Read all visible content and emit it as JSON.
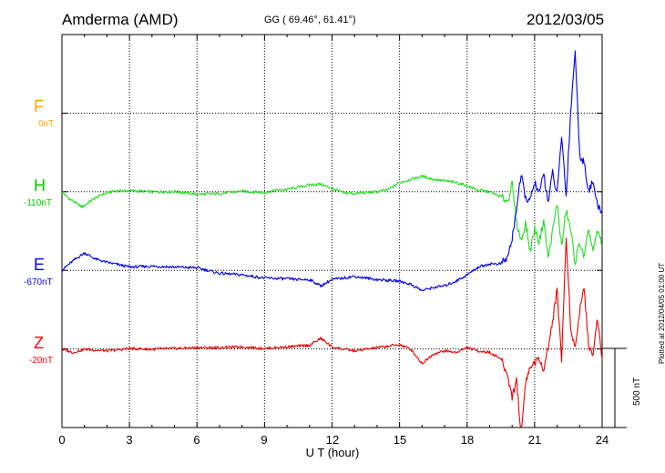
{
  "header": {
    "station": "Amderma (AMD)",
    "coords": "GG ( 69.46°,  61.41°)",
    "date": "2012/03/05",
    "plotted": "Plotted at 2012/04/05 01:00 UT"
  },
  "chart_data": {
    "type": "line",
    "xlabel": "U T (hour)",
    "xlim": [
      0,
      24
    ],
    "xticks": [
      "0",
      "3",
      "6",
      "9",
      "12",
      "15",
      "18",
      "21",
      "24"
    ],
    "ylabel": "",
    "grid": true,
    "scale_bar": "500 nT",
    "components": [
      {
        "letter": "F",
        "offset": "0nT",
        "color": "#ffa500"
      },
      {
        "letter": "H",
        "offset": "-110nT",
        "color": "#00cc00"
      },
      {
        "letter": "E",
        "offset": "-670nT",
        "color": "#0000ff"
      },
      {
        "letter": "Z",
        "offset": "-20nT",
        "color": "#ff0000"
      }
    ],
    "series": [
      {
        "name": "H",
        "color": "#22dd22",
        "unit": "nT relative to baseline",
        "x": [
          0,
          0.3,
          0.6,
          0.9,
          1.1,
          1.4,
          1.8,
          2.3,
          3,
          4,
          5,
          6,
          7,
          8,
          9,
          9.5,
          10,
          10.5,
          11,
          11.5,
          12,
          12.5,
          13,
          14,
          14.5,
          15,
          15.5,
          16,
          16.5,
          17,
          17.5,
          18,
          18.5,
          19,
          19.5,
          19.8,
          20.0,
          20.2,
          20.4,
          20.6,
          20.8,
          21.0,
          21.2,
          21.4,
          21.6,
          21.8,
          22.0,
          22.2,
          22.4,
          22.6,
          22.8,
          23.0,
          23.2,
          23.4,
          23.6,
          23.8,
          24
        ],
        "y": [
          0,
          -40,
          -70,
          -95,
          -75,
          -45,
          -15,
          5,
          8,
          0,
          2,
          -15,
          -10,
          5,
          -5,
          10,
          15,
          30,
          45,
          50,
          20,
          -5,
          -10,
          0,
          15,
          60,
          80,
          100,
          80,
          70,
          60,
          40,
          10,
          0,
          -30,
          -60,
          50,
          -200,
          -310,
          -200,
          -380,
          -230,
          -320,
          -180,
          -420,
          -250,
          -70,
          -350,
          -120,
          -240,
          -450,
          -320,
          -420,
          -240,
          -380,
          -250,
          -330
        ]
      },
      {
        "name": "E",
        "color": "#0000ee",
        "unit": "nT relative to baseline",
        "x": [
          0,
          0.5,
          1,
          1.5,
          2,
          3,
          4,
          5,
          6,
          7,
          8,
          9,
          10,
          10.5,
          11,
          11.5,
          12,
          13,
          14,
          15,
          15.5,
          16,
          16.5,
          17,
          17.5,
          18,
          18.5,
          19,
          19.5,
          19.8,
          20.0,
          20.2,
          20.4,
          20.6,
          20.8,
          21.0,
          21.2,
          21.4,
          21.6,
          21.8,
          22.0,
          22.2,
          22.4,
          22.6,
          22.8,
          23.0,
          23.2,
          23.4,
          23.6,
          23.8,
          24
        ],
        "y": [
          0,
          60,
          110,
          70,
          50,
          20,
          25,
          20,
          15,
          -20,
          -30,
          -50,
          -55,
          -60,
          -60,
          -100,
          -60,
          -40,
          -60,
          -70,
          -90,
          -130,
          -110,
          -100,
          -70,
          -30,
          20,
          40,
          40,
          80,
          200,
          400,
          600,
          460,
          440,
          560,
          480,
          620,
          430,
          620,
          480,
          860,
          470,
          1000,
          1400,
          740,
          680,
          510,
          560,
          400,
          380
        ]
      },
      {
        "name": "Z",
        "color": "#ee0000",
        "unit": "nT relative to baseline",
        "x": [
          0,
          0.5,
          1,
          2,
          3,
          4,
          5,
          6,
          7,
          8,
          9,
          10,
          11,
          11.5,
          12,
          12.5,
          13,
          14,
          15,
          15.5,
          16,
          16.5,
          17,
          17.5,
          18,
          18.5,
          19,
          19.5,
          19.8,
          20.0,
          20.2,
          20.4,
          20.6,
          20.8,
          21.0,
          21.2,
          21.4,
          21.6,
          21.8,
          22.0,
          22.2,
          22.4,
          22.6,
          22.8,
          23.0,
          23.2,
          23.4,
          23.6,
          23.8,
          24
        ],
        "y": [
          0,
          -20,
          0,
          -10,
          5,
          0,
          5,
          10,
          10,
          15,
          5,
          15,
          25,
          70,
          15,
          0,
          -10,
          10,
          30,
          0,
          -90,
          -30,
          -10,
          -20,
          10,
          -10,
          -20,
          -60,
          -170,
          -300,
          -200,
          -550,
          -200,
          -120,
          -80,
          -70,
          -120,
          10,
          180,
          380,
          -70,
          710,
          150,
          0,
          250,
          400,
          10,
          -20,
          200,
          -50
        ]
      }
    ]
  }
}
